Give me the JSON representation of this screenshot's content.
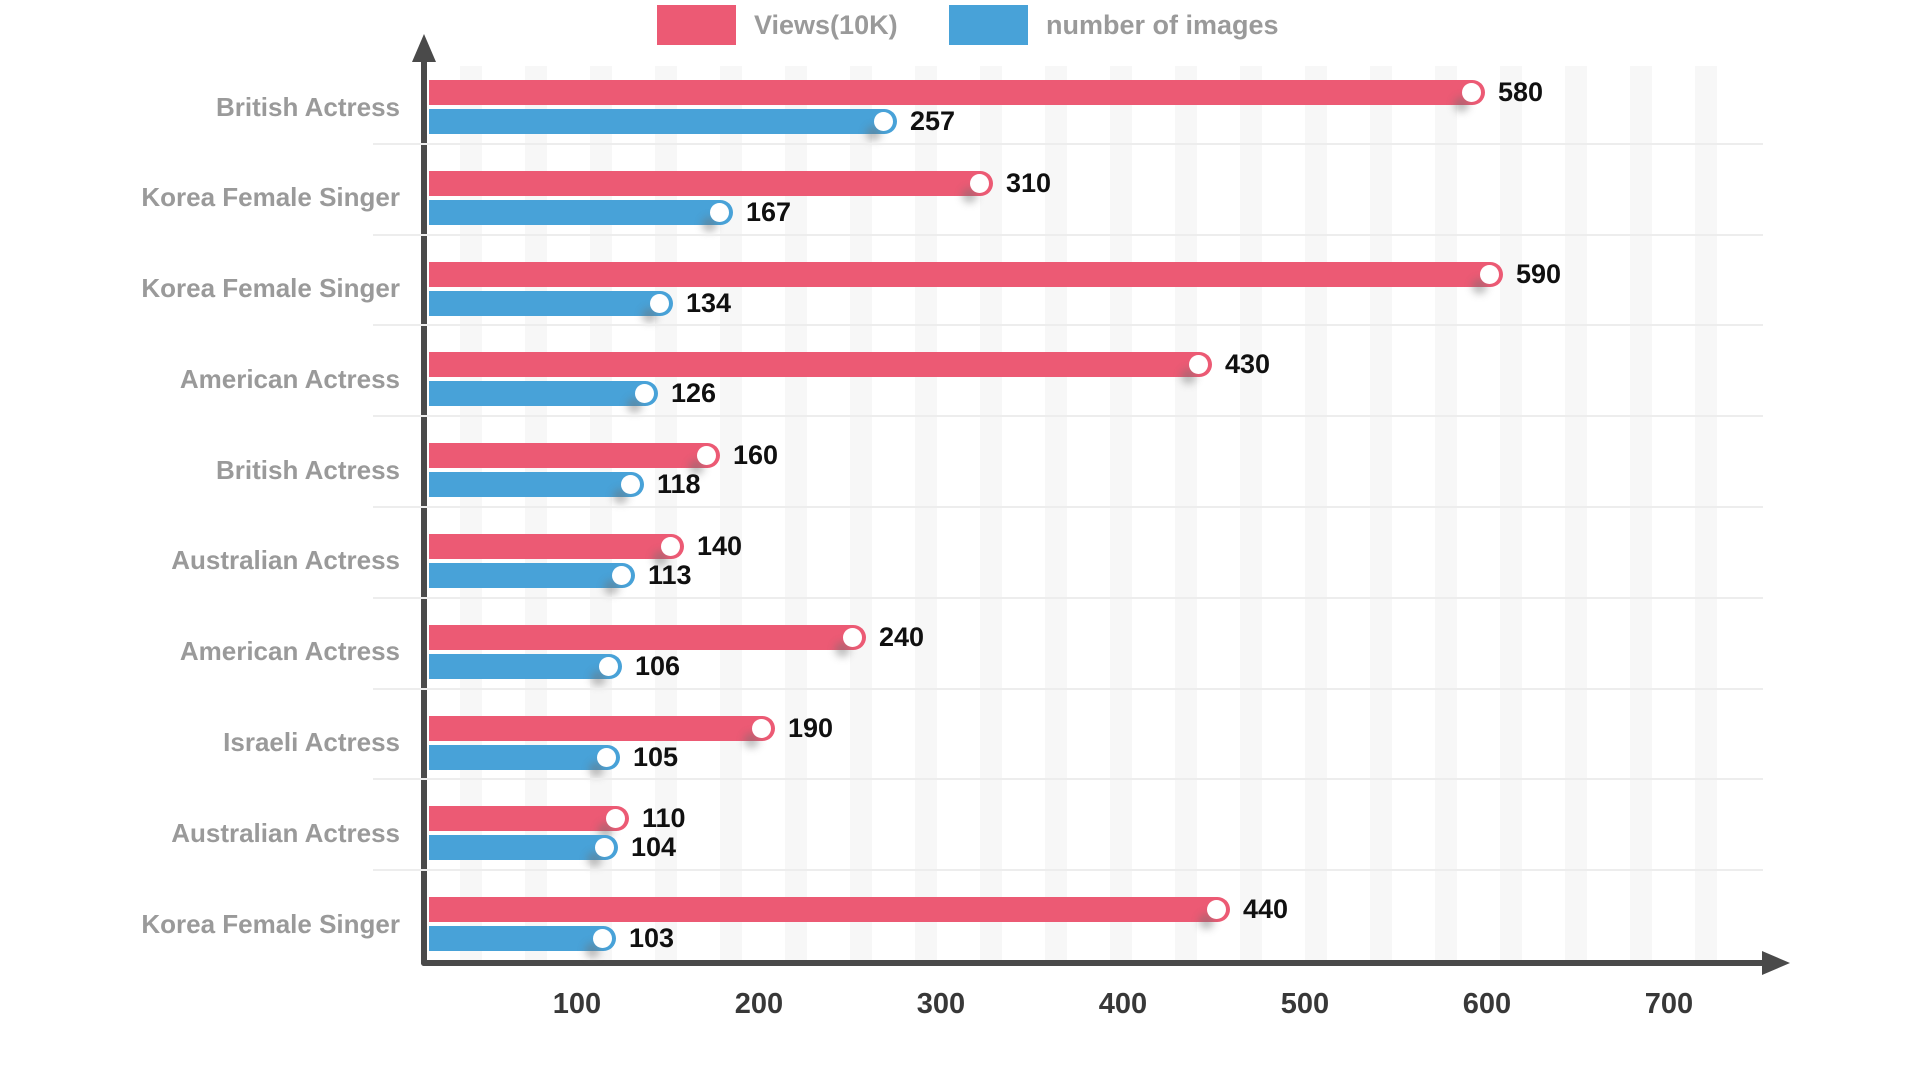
{
  "legend": {
    "views_label": "Views(10K)",
    "images_label": "number of images"
  },
  "colors": {
    "views": "#ec5a74",
    "images": "#48a2d8",
    "axis": "#4a4a4a",
    "category_text": "#9a9a9a",
    "value_text": "#101010",
    "tick_text": "#383838",
    "stripe": "#f7f7f7",
    "separator": "#ededed"
  },
  "chart_data": {
    "type": "bar",
    "orientation": "horizontal",
    "title": "",
    "xlabel": "",
    "ylabel": "",
    "categories": [
      "British Actress",
      "Korea Female Singer",
      "Korea Female Singer",
      "American Actress",
      "British Actress",
      "Australian Actress",
      "American Actress",
      "Israeli Actress",
      "Australian Actress",
      "Korea Female Singer"
    ],
    "series": [
      {
        "name": "Views(10K)",
        "color": "#ec5a74",
        "values": [
          580,
          310,
          590,
          430,
          160,
          140,
          240,
          190,
          110,
          440
        ]
      },
      {
        "name": "number of images",
        "color": "#48a2d8",
        "values": [
          257,
          167,
          134,
          126,
          118,
          113,
          106,
          105,
          104,
          103
        ]
      }
    ],
    "xticks": [
      100,
      200,
      300,
      400,
      500,
      600,
      700
    ],
    "xlim": [
      0,
      750
    ],
    "grid": "vertical-stripes",
    "legend_position": "top",
    "bar_end_marker": "white-circle"
  }
}
